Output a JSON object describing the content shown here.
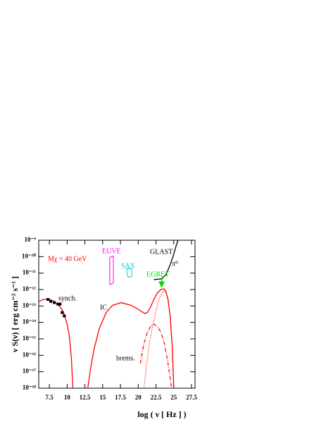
{
  "chart_data": {
    "type": "line",
    "y_label": "ν S(ν) [ erg cm⁻² s⁻¹ ]",
    "x_label": "log ( ν [ Hz ] )",
    "annotations": [
      {
        "text": "Mχ = 40 GeV",
        "color": "#ff0000"
      }
    ],
    "xlim": [
      6,
      28
    ],
    "xticks": [
      7.5,
      10,
      12.5,
      15,
      17.5,
      20,
      22.5,
      25,
      27.5
    ],
    "ylim": [
      1e-18,
      1e-09
    ],
    "y_log": true,
    "yticks": [
      {
        "value": 1e-09,
        "label": "10⁻⁹"
      },
      {
        "value": 1e-10,
        "label": "10⁻¹⁰"
      },
      {
        "value": 1e-11,
        "label": "10⁻¹¹"
      },
      {
        "value": 1e-12,
        "label": "10⁻¹²"
      },
      {
        "value": 1e-13,
        "label": "10⁻¹³"
      },
      {
        "value": 1e-14,
        "label": "10⁻¹⁴"
      },
      {
        "value": 1e-15,
        "label": "10⁻¹⁵"
      },
      {
        "value": 1e-16,
        "label": "10⁻¹⁶"
      },
      {
        "value": 1e-17,
        "label": "10⁻¹⁷"
      },
      {
        "value": 1e-18,
        "label": "10⁻¹⁸"
      }
    ],
    "series": [
      {
        "name": "synch.",
        "color": "#ff0000",
        "style": "solid",
        "x": [
          6,
          6.5,
          7,
          7.5,
          8,
          8.5,
          9,
          9.5,
          10,
          10.3,
          10.6,
          10.8
        ],
        "values": [
          1.8e-13,
          2.4e-13,
          2.6e-13,
          2.5e-13,
          2.1e-13,
          1.5e-13,
          8.9e-14,
          4e-14,
          7.9e-15,
          1.6e-15,
          6.3e-17,
          1e-18
        ]
      },
      {
        "name": "IC",
        "color": "#ff0000",
        "style": "solid",
        "x": [
          12.9,
          13.3,
          13.8,
          14.5,
          15.5,
          16.4,
          17.6,
          19,
          20,
          20.5,
          21,
          21.3,
          21.7,
          22.2,
          22.7,
          23.2,
          23.6,
          23.9,
          24.2,
          24.5,
          24.8,
          25
        ],
        "values": [
          1e-18,
          1.6e-17,
          2.5e-16,
          4e-15,
          4e-14,
          1.1e-13,
          1.6e-13,
          1.1e-13,
          6.3e-14,
          4.5e-14,
          3.5e-14,
          4e-14,
          7.9e-14,
          2.5e-13,
          6.3e-13,
          1e-12,
          1.1e-12,
          7.9e-13,
          2.5e-13,
          2.5e-14,
          3.2e-16,
          1e-18
        ]
      },
      {
        "name": "brems.",
        "color": "#ff0000",
        "style": "dashdot",
        "x": [
          20.3,
          20.8,
          21.3,
          21.8,
          22.2,
          22.7,
          23.2,
          23.7,
          24.2,
          24.7
        ],
        "values": [
          3.2e-17,
          5e-16,
          2.5e-15,
          6.3e-15,
          7.9e-15,
          5.6e-15,
          2.5e-15,
          5e-16,
          3.2e-17,
          1e-18
        ]
      },
      {
        "name": "π⁰",
        "color": "#ff0000",
        "style": "dotted",
        "x": [
          20.8,
          21.2,
          21.6,
          22,
          22.5,
          23,
          23.5,
          23.9,
          24.2,
          24.5,
          24.8,
          25
        ],
        "values": [
          1e-18,
          3.2e-17,
          6.3e-16,
          5e-15,
          5e-14,
          3.2e-13,
          7.9e-13,
          7.1e-13,
          2.5e-13,
          2.5e-14,
          3.2e-16,
          1e-18
        ]
      },
      {
        "name": "GLAST",
        "color": "#000000",
        "style": "solid",
        "x": [
          22.2,
          23.3,
          23.9,
          24.4,
          24.9,
          25.3,
          25.6
        ],
        "values": [
          4e-12,
          4.5e-12,
          7.9e-12,
          2.5e-11,
          1e-10,
          4e-10,
          1e-09
        ]
      },
      {
        "name": "EUVE",
        "color": "#ff00ff",
        "style": "polygon",
        "x": [
          16.0,
          16.5,
          16.5,
          16.0
        ],
        "values": [
          8.9e-11,
          1.1e-10,
          2.5e-12,
          2e-12
        ]
      },
      {
        "name": "SAX",
        "color": "#00cccc",
        "style": "polygon",
        "x": [
          18.4,
          19.1,
          19.1,
          18.6,
          18.4
        ],
        "values": [
          2e-11,
          1.8e-11,
          6.3e-12,
          5.6e-12,
          1e-11
        ]
      },
      {
        "name": "EGRET",
        "color": "#00dd00",
        "style": "arrow",
        "x": [
          23.3,
          23.3
        ],
        "values": [
          4.5e-12,
          1.4e-12
        ]
      },
      {
        "color": "#000000",
        "style": "points",
        "x": [
          7.3,
          7.7,
          8.2,
          8.7,
          9.0,
          9.3,
          9.6
        ],
        "values": [
          2.5e-13,
          1.9e-13,
          1.6e-13,
          1.3e-13,
          1.3e-13,
          4e-14,
          2.5e-14
        ]
      }
    ]
  }
}
